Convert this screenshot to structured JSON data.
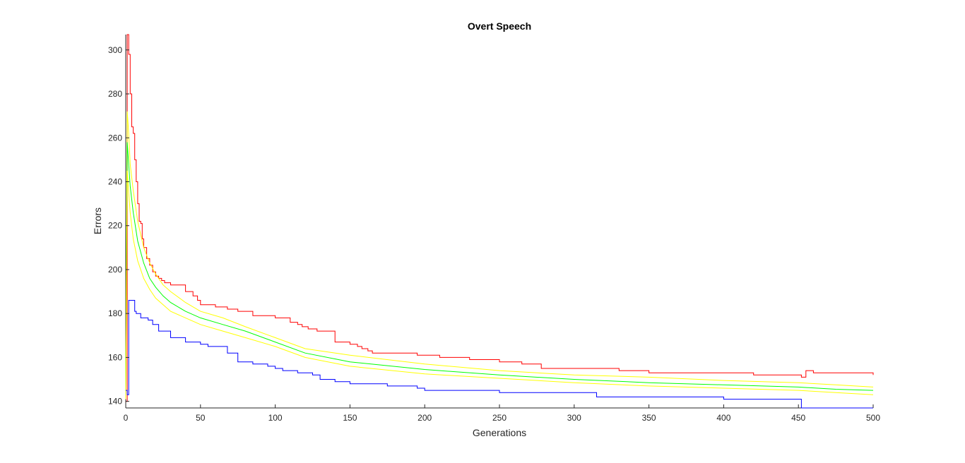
{
  "chart_data": {
    "type": "line",
    "title": "Overt Speech",
    "xlabel": "Generations",
    "ylabel": "Errors",
    "xlim": [
      0,
      500
    ],
    "ylim": [
      137,
      307
    ],
    "xticks": [
      0,
      50,
      100,
      150,
      200,
      250,
      300,
      350,
      400,
      450,
      500
    ],
    "yticks": [
      140,
      160,
      180,
      200,
      220,
      240,
      260,
      280,
      300
    ],
    "grid": false,
    "legend": "none",
    "series": [
      {
        "color": "#ff0000",
        "step": true,
        "x": [
          0,
          1,
          2,
          3,
          4,
          5,
          6,
          7,
          8,
          9,
          10,
          11,
          12,
          14,
          16,
          18,
          20,
          22,
          24,
          26,
          30,
          34,
          40,
          45,
          48,
          50,
          55,
          60,
          68,
          75,
          85,
          100,
          110,
          115,
          118,
          122,
          128,
          140,
          145,
          150,
          155,
          158,
          162,
          165,
          175,
          195,
          210,
          230,
          250,
          262,
          265,
          270,
          278,
          300,
          330,
          350,
          380,
          400,
          420,
          430,
          450,
          452,
          455,
          458,
          460,
          480,
          500
        ],
        "y": [
          140,
          307,
          298,
          280,
          265,
          262,
          250,
          240,
          230,
          222,
          221,
          214,
          210,
          205,
          202,
          199,
          197,
          196,
          195,
          194,
          193,
          193,
          190,
          188,
          186,
          184,
          184,
          183,
          182,
          181,
          179,
          178,
          176,
          175,
          174,
          173,
          172,
          167,
          167,
          166,
          165,
          164,
          163,
          162,
          162,
          161,
          160,
          159,
          158,
          158,
          157,
          157,
          155,
          155,
          154,
          153,
          153,
          153,
          152,
          152,
          152,
          151,
          154,
          154,
          153,
          153,
          152
        ]
      },
      {
        "color": "#ffff00",
        "step": false,
        "x": [
          0,
          1,
          2,
          3,
          5,
          8,
          12,
          16,
          20,
          25,
          30,
          40,
          50,
          65,
          80,
          100,
          120,
          150,
          200,
          250,
          300,
          350,
          400,
          450,
          475,
          500
        ],
        "y": [
          145,
          272,
          262,
          248,
          236,
          222,
          210,
          203,
          198,
          193,
          190,
          185,
          181,
          178,
          174,
          169,
          164,
          161,
          157,
          154,
          152,
          151,
          149.5,
          148.5,
          147.5,
          146.5
        ]
      },
      {
        "color": "#00ff00",
        "step": false,
        "x": [
          0,
          1,
          2,
          3,
          5,
          8,
          12,
          16,
          20,
          25,
          30,
          40,
          50,
          65,
          80,
          100,
          120,
          150,
          200,
          250,
          300,
          350,
          400,
          450,
          475,
          500
        ],
        "y": [
          143,
          258,
          248,
          238,
          226,
          213,
          203,
          196,
          192,
          188,
          185,
          181,
          178,
          175,
          172,
          167,
          162,
          158,
          154.5,
          152,
          150,
          148.5,
          147.5,
          146.5,
          145.5,
          145
        ]
      },
      {
        "color": "#ffff00",
        "step": false,
        "x": [
          0,
          1,
          2,
          3,
          5,
          8,
          12,
          16,
          20,
          25,
          30,
          40,
          50,
          65,
          80,
          100,
          120,
          150,
          200,
          250,
          300,
          350,
          400,
          450,
          475,
          500
        ],
        "y": [
          141,
          245,
          235,
          226,
          214,
          204,
          196,
          191,
          187,
          184,
          181,
          178,
          175,
          172,
          169,
          165,
          160,
          156,
          152.5,
          150.5,
          148.5,
          147,
          146,
          145,
          144,
          143
        ]
      },
      {
        "color": "#0000ff",
        "step": true,
        "x": [
          0,
          1,
          2,
          3,
          4,
          5,
          6,
          7,
          8,
          10,
          15,
          18,
          22,
          30,
          40,
          50,
          55,
          68,
          75,
          85,
          95,
          100,
          105,
          110,
          115,
          125,
          130,
          140,
          150,
          175,
          195,
          200,
          210,
          250,
          260,
          300,
          315,
          340,
          350,
          395,
          400,
          450,
          452,
          500
        ],
        "y": [
          145,
          143,
          186,
          186,
          186,
          186,
          181,
          180,
          180,
          178,
          177,
          175,
          172,
          169,
          167,
          166,
          165,
          162,
          158,
          157,
          156,
          155,
          154,
          154,
          153,
          152,
          150,
          149,
          148,
          147,
          146,
          145,
          145,
          144,
          144,
          144,
          142,
          142,
          142,
          142,
          141,
          141,
          137,
          137
        ]
      }
    ]
  }
}
